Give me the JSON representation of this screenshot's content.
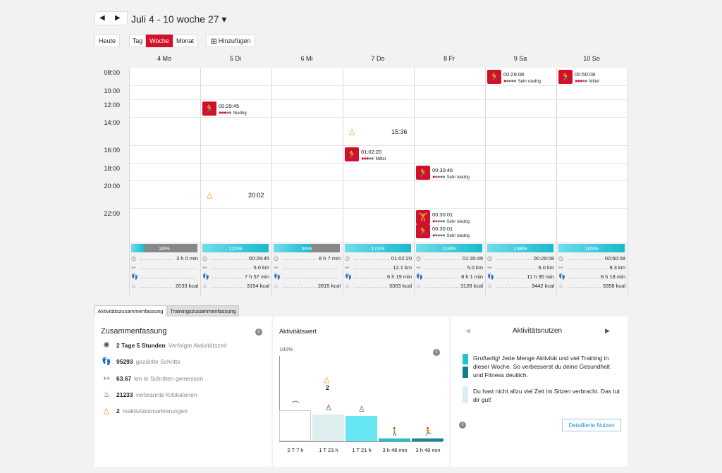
{
  "nav": {
    "prev": "◀",
    "next": "▶",
    "title": "Juli 4 - 10 woche 27 ▾"
  },
  "toolbar": {
    "today": "Heute",
    "day": "Tag",
    "week": "Woche",
    "month": "Monat",
    "add": "Hinzufügen",
    "add_icon": "⊞"
  },
  "days": [
    "4 Mo",
    "5 Di",
    "6 Mi",
    "7 Do",
    "8 Fr",
    "9 Sa",
    "10 So"
  ],
  "times": [
    "08:00",
    "10:00",
    "12:00",
    "14:00",
    "16:00",
    "18:00",
    "20:00",
    "22:00"
  ],
  "events": [
    {
      "duration": "00:29:45",
      "level": "Niedrig",
      "dots_red": 3,
      "icon": "run-icon"
    },
    {
      "duration": "01:02:20",
      "level": "Mittel",
      "dots_red": 3,
      "icon": "run-icon"
    },
    {
      "duration": "00:30:46",
      "level": "Sehr niedrig",
      "dots_red": 1,
      "icon": "run-icon"
    },
    {
      "duration": "00:30:01",
      "level": "Sehr niedrig",
      "dots_red": 1,
      "icon": "strength-icon"
    },
    {
      "duration": "00:30:01",
      "level": "Sehr niedrig",
      "dots_red": 1,
      "icon": "run-icon"
    },
    {
      "duration": "00:29:08",
      "level": "Sehr niedrig",
      "dots_red": 1,
      "icon": "run-icon"
    },
    {
      "duration": "00:50:08",
      "level": "Mittel",
      "dots_red": 3,
      "icon": "run-icon"
    }
  ],
  "inactivity": [
    {
      "time": "20:02",
      "icon": "△"
    },
    {
      "time": "15:36",
      "icon": "△"
    }
  ],
  "daily": [
    {
      "pct": "20%",
      "pct_value": 20,
      "time": "3 h 0 min",
      "steps": "",
      "dist": "",
      "kcal": "2033 kcal"
    },
    {
      "pct": "122%",
      "pct_value": 122,
      "time": "00:29:45",
      "dist": "5.0 km",
      "steps": "7 h 57 min",
      "kcal": "3154 kcal"
    },
    {
      "pct": "56%",
      "pct_value": 56,
      "time": "8 h 7 min",
      "dist": "",
      "steps": "",
      "kcal": "2815 kcal"
    },
    {
      "pct": "174%",
      "pct_value": 174,
      "time": "01:02:20",
      "dist": "12.1 km",
      "steps": "6 h 19 min",
      "kcal": "3303 kcal"
    },
    {
      "pct": "118%",
      "pct_value": 118,
      "time": "01:30:49",
      "dist": "5.0 km",
      "steps": "8 h 1 min",
      "kcal": "3128 kcal"
    },
    {
      "pct": "138%",
      "pct_value": 138,
      "time": "00:29:08",
      "dist": "6.0 km",
      "steps": "11 h 35 min",
      "kcal": "3442 kcal"
    },
    {
      "pct": "165%",
      "pct_value": 165,
      "time": "00:50:08",
      "dist": "8.3 km",
      "steps": "8 h 18 min",
      "kcal": "3358 kcal"
    }
  ],
  "tabs": {
    "activity": "Aktivitätszusammenfassung",
    "training": "Trainingszusammenfassung"
  },
  "summary": {
    "title": "Zusammenfassung",
    "info": "i",
    "rows": [
      {
        "bold": "2 Tage 5 Stunden",
        "rest": "Verfolgte Aktivitätszeit",
        "icon": "✺"
      },
      {
        "bold": "95293",
        "rest": "gezählte Schritte",
        "icon": "👣"
      },
      {
        "bold": "63.67",
        "rest": "km in Schritten gemessen",
        "icon": "⇿"
      },
      {
        "bold": "21233",
        "rest": "verbrannte Kilokalorien",
        "icon": "♨"
      },
      {
        "bold": "2",
        "rest": "Inaktivitätsmarkierungen",
        "icon": "△"
      }
    ]
  },
  "aktivitaetswert": {
    "title": "Aktivitätswert",
    "pct_label": "100%",
    "info": "i",
    "inactivity_count": "2",
    "bars": [
      {
        "label": "2 T 7 h",
        "value": 0.37,
        "icon": "sleep-icon",
        "glyph": "⌒"
      },
      {
        "label": "1 T 23 h",
        "value": 0.32,
        "icon": "sitting-icon",
        "glyph": "♙"
      },
      {
        "label": "1 T 21 h",
        "value": 0.3,
        "icon": "standing-icon",
        "glyph": "♙"
      },
      {
        "label": "3 h 48 min",
        "value": 0.03,
        "icon": "walking-icon",
        "glyph": "🚶"
      },
      {
        "label": "3 h 48 min",
        "value": 0.03,
        "icon": "running-icon",
        "glyph": "🏃"
      }
    ]
  },
  "nutzen": {
    "title": "Aktivitätsnutzen",
    "prev": "◀",
    "next": "▶",
    "msg1": "Großartig! Jede Menge Aktivität und viel Training in dieser Woche. So verbesserst du deine Gesundheit und Fitness deutlich.",
    "msg2": "Du hast nicht allzu viel Zeit im Sitzen verbracht. Das tut dir gut!",
    "button": "Detaillierte Nutzen",
    "info": "i"
  },
  "colors": {
    "accent": "#d3102a",
    "teal": "#1fc4d6",
    "warn": "#f08a00"
  }
}
